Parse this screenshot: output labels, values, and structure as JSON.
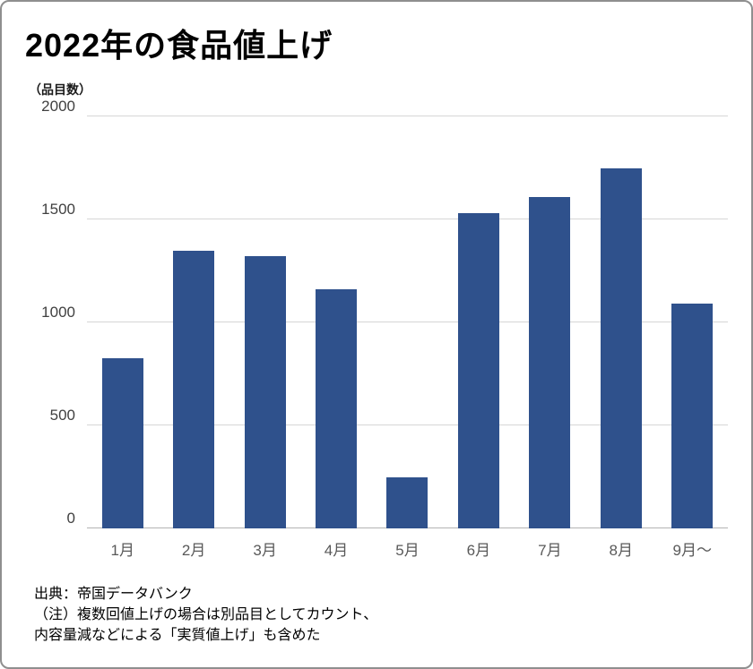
{
  "chart_data": {
    "type": "bar",
    "title": "2022年の食品値上げ",
    "unit_label": "（品目数）",
    "categories": [
      "1月",
      "2月",
      "3月",
      "4月",
      "5月",
      "6月",
      "7月",
      "8月",
      "9月〜"
    ],
    "values": [
      825,
      1350,
      1320,
      1160,
      250,
      1530,
      1610,
      1750,
      1090
    ],
    "ylim": [
      0,
      2000
    ],
    "yticks": [
      0,
      500,
      1000,
      1500,
      2000
    ],
    "grid": "horizontal",
    "legend": "none",
    "bar_color": "#2f518c"
  },
  "footer": {
    "source_line": "出典：帝国データバンク",
    "note_line1": "（注）複数回値上げの場合は別品目としてカウント、",
    "note_line2": "内容量減などによる「実質値上げ」も含めた"
  }
}
